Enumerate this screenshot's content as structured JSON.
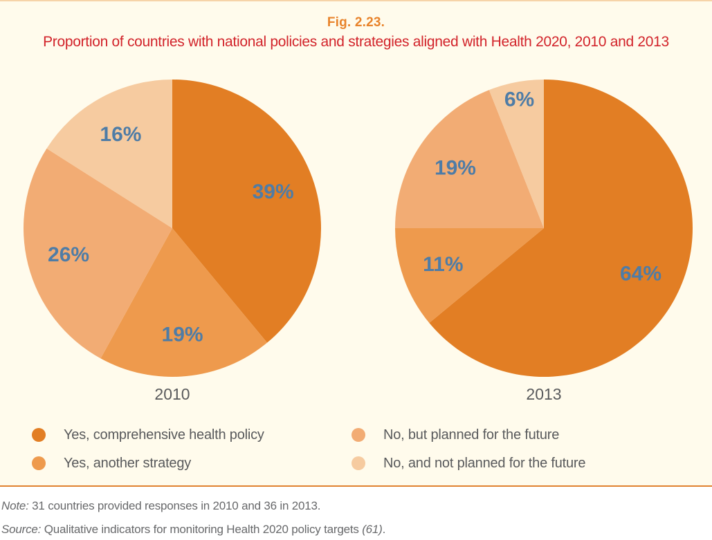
{
  "figure": {
    "label": "Fig. 2.23.",
    "title": "Proportion of countries with national policies and strategies aligned with Health 2020, 2010 and 2013"
  },
  "colors": {
    "background": "#FFFBEC",
    "notes_background": "#FFFFFF",
    "top_rule": "#F6D3A8",
    "separator_rule": "#E0812F",
    "figure_label": "#E8832B",
    "title": "#D2232A",
    "percent_label": "#4E7CA6",
    "year_label": "#58595B",
    "note_text": "#67686A",
    "slice_colors": [
      "#E27E24",
      "#EE9A4D",
      "#F2AC74",
      "#F6CBA0"
    ]
  },
  "chart_data": [
    {
      "type": "pie",
      "title": "2010",
      "start_angle_deg": 0,
      "direction": "clockwise",
      "categories": [
        "Yes, comprehensive health policy",
        "Yes, another strategy",
        "No, but planned for the future",
        "No, and not planned for the future"
      ],
      "values": [
        39,
        19,
        26,
        16
      ],
      "data_labels": [
        "39%",
        "19%",
        "26%",
        "16%"
      ],
      "unit": "%"
    },
    {
      "type": "pie",
      "title": "2013",
      "start_angle_deg": 0,
      "direction": "clockwise",
      "categories": [
        "Yes, comprehensive health policy",
        "Yes, another strategy",
        "No, but planned for the future",
        "No, and not planned for the future"
      ],
      "values": [
        64,
        11,
        19,
        6
      ],
      "data_labels": [
        "64%",
        "11%",
        "19%",
        "6%"
      ],
      "unit": "%"
    }
  ],
  "legend": {
    "items": [
      {
        "label": "Yes, comprehensive health policy",
        "color": "#E27E24"
      },
      {
        "label": "Yes, another strategy",
        "color": "#EE9A4D"
      },
      {
        "label": "No, but planned for the future",
        "color": "#F2AC74"
      },
      {
        "label": "No, and not planned for the future",
        "color": "#F6CBA0"
      }
    ]
  },
  "notes": {
    "note_label": "Note:",
    "note_text": " 31 countries provided responses in 2010 and 36 in 2013.",
    "source_label": "Source:",
    "source_text": " Qualitative indicators for monitoring Health 2020 policy targets ",
    "source_ref": "(61)",
    "source_end": "."
  }
}
